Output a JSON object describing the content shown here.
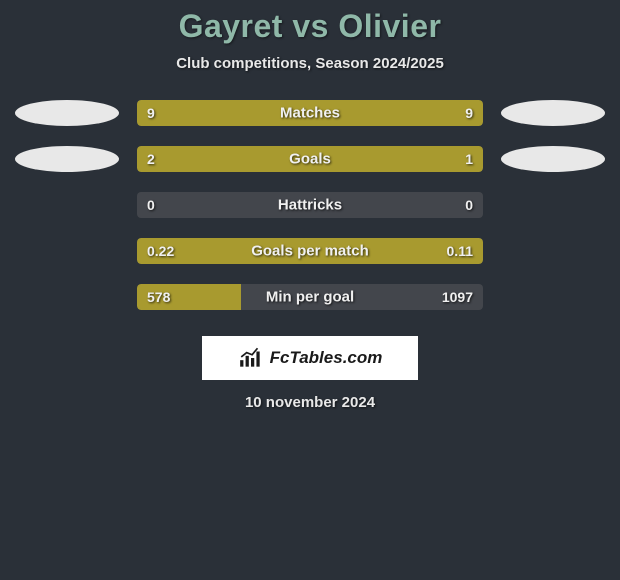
{
  "title": "Gayret vs Olivier",
  "subtitle": "Club competitions, Season 2024/2025",
  "bg_color": "#2a3038",
  "title_color": "#8fb8a8",
  "text_color": "#e8e8e8",
  "bar_bg_color": "#43464c",
  "bar_fill_color": "#a89a2f",
  "ellipse_color": "#e8e8e8",
  "bars": [
    {
      "label": "Matches",
      "left_val": "9",
      "right_val": "9",
      "left_pct": 50,
      "right_pct": 50,
      "show_left_ellipse": true,
      "show_right_ellipse": true
    },
    {
      "label": "Goals",
      "left_val": "2",
      "right_val": "1",
      "left_pct": 66.7,
      "right_pct": 33.3,
      "show_left_ellipse": true,
      "show_right_ellipse": true
    },
    {
      "label": "Hattricks",
      "left_val": "0",
      "right_val": "0",
      "left_pct": 0,
      "right_pct": 0,
      "show_left_ellipse": false,
      "show_right_ellipse": false
    },
    {
      "label": "Goals per match",
      "left_val": "0.22",
      "right_val": "0.11",
      "left_pct": 66.7,
      "right_pct": 33.3,
      "show_left_ellipse": false,
      "show_right_ellipse": false
    },
    {
      "label": "Min per goal",
      "left_val": "578",
      "right_val": "1097",
      "left_pct": 30,
      "right_pct": 0,
      "show_left_ellipse": false,
      "show_right_ellipse": false
    }
  ],
  "branding": "FcTables.com",
  "date": "10 november 2024"
}
